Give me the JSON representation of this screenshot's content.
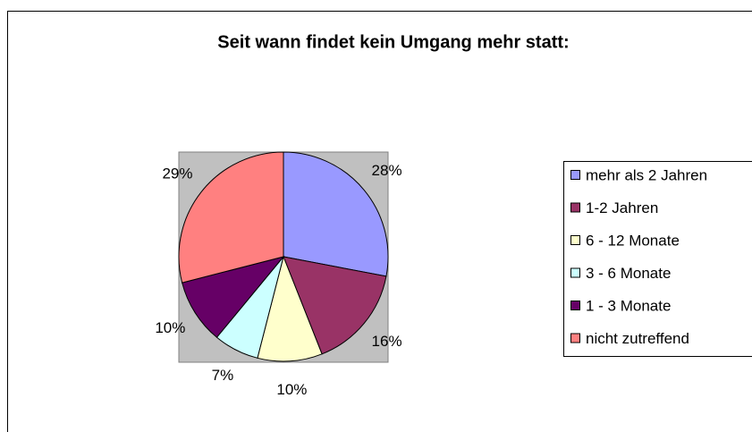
{
  "chart_data": {
    "type": "pie",
    "title": "Seit wann findet kein Umgang mehr statt:",
    "categories": [
      "mehr als 2 Jahren",
      "1-2 Jahren",
      "6 - 12 Monate",
      "3 - 6 Monate",
      "1 - 3 Monate",
      "nicht zutreffend"
    ],
    "values": [
      28,
      16,
      10,
      7,
      10,
      29
    ],
    "value_labels": [
      "28%",
      "16%",
      "10%",
      "7%",
      "10%",
      "29%"
    ],
    "colors": [
      "#9999ff",
      "#993366",
      "#ffffcc",
      "#ccffff",
      "#660066",
      "#ff8080"
    ],
    "legend": "right"
  }
}
